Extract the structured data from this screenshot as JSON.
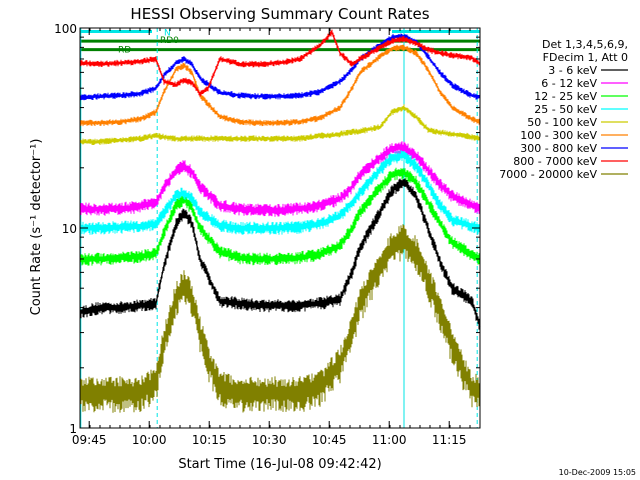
{
  "chart_data": {
    "type": "line",
    "title": "HESSI Observing Summary Count Rates",
    "xlabel": "Start Time (16-Jul-08 09:42:42)",
    "ylabel": "Count Rate (s⁻¹ detector⁻¹)",
    "x_unit": "minutes after 09:42:42",
    "xlim": [
      0,
      100
    ],
    "ylim": [
      1,
      100
    ],
    "y_scale": "log",
    "x_tick_labels": [
      "09:45",
      "10:00",
      "10:15",
      "10:30",
      "10:45",
      "11:00",
      "11:15"
    ],
    "x_tick_values": [
      2.3,
      17.3,
      32.3,
      47.3,
      62.3,
      77.3,
      92.3
    ],
    "y_tick_labels": [
      "1",
      "10",
      "100"
    ],
    "y_tick_values": [
      1,
      10,
      100
    ],
    "legend_header": [
      "Det 1,3,4,5,6,9,",
      "FDecim 1, Att 0"
    ],
    "legend_placement": "right",
    "annotations": [
      {
        "text": "N",
        "x": 21,
        "y": 96,
        "color": "#00e5e5"
      },
      {
        "text": "RD0",
        "x": 20,
        "y": 88,
        "color": "#008000"
      },
      {
        "text": "RD",
        "x": 9.5,
        "y": 79,
        "color": "#008000"
      }
    ],
    "flags": [
      {
        "name": "N",
        "color": "#00e5e5",
        "y": 96,
        "segments": [
          [
            0,
            18
          ],
          [
            78,
            100
          ]
        ]
      },
      {
        "name": "RD0",
        "color": "#008000",
        "y": 86,
        "segments": [
          [
            0,
            100
          ]
        ]
      },
      {
        "name": "RD",
        "color": "#008000",
        "y": 78,
        "segments": [
          [
            0,
            16
          ],
          [
            16,
            100
          ]
        ]
      }
    ],
    "vertical_lines": [
      {
        "x": 0.2,
        "color": "#00e5e5",
        "style": "solid"
      },
      {
        "x": 19.3,
        "color": "#00e5e5",
        "style": "dashed"
      },
      {
        "x": 81.0,
        "color": "#00e5e5",
        "style": "solid"
      },
      {
        "x": 99.3,
        "color": "#00e5e5",
        "style": "dashed"
      }
    ],
    "series": [
      {
        "name": "3 - 6 keV",
        "color": "#000000",
        "x": [
          0,
          5,
          10,
          15,
          19,
          21,
          24,
          26,
          28,
          30,
          35,
          40,
          45,
          50,
          55,
          60,
          65,
          68,
          70,
          75,
          78,
          81,
          84,
          87,
          90,
          93,
          96,
          98,
          100
        ],
        "y": [
          3.8,
          4.0,
          4.0,
          4.1,
          4.2,
          6.5,
          10.5,
          12.0,
          10.5,
          7.0,
          4.3,
          4.2,
          4.1,
          4.1,
          4.1,
          4.2,
          4.4,
          6.0,
          8.0,
          12.0,
          15.5,
          17.0,
          14.5,
          10.0,
          6.8,
          5.0,
          4.6,
          4.3,
          3.2
        ]
      },
      {
        "name": "6 - 12 keV",
        "color": "#ff00ff",
        "x": [
          0,
          5,
          10,
          15,
          19,
          21,
          24,
          26,
          28,
          30,
          35,
          40,
          45,
          50,
          55,
          60,
          65,
          68,
          70,
          75,
          78,
          81,
          84,
          87,
          90,
          93,
          96,
          98,
          100
        ],
        "y": [
          12.5,
          12.4,
          12.5,
          12.8,
          13.5,
          16.0,
          19.5,
          20.5,
          19.0,
          16.0,
          13.0,
          12.4,
          12.3,
          12.3,
          12.5,
          13.0,
          14.0,
          16.0,
          18.5,
          22.5,
          25.0,
          25.5,
          23.0,
          19.5,
          16.5,
          14.5,
          13.5,
          13.0,
          12.5
        ]
      },
      {
        "name": "12 - 25 keV",
        "color": "#00ff00",
        "x": [
          0,
          5,
          10,
          15,
          19,
          21,
          24,
          26,
          28,
          30,
          35,
          40,
          45,
          50,
          55,
          60,
          65,
          68,
          70,
          75,
          78,
          81,
          84,
          87,
          90,
          93,
          96,
          98,
          100
        ],
        "y": [
          7.0,
          7.0,
          7.1,
          7.2,
          7.5,
          9.5,
          13.0,
          14.0,
          12.5,
          10.0,
          7.6,
          7.1,
          7.0,
          7.0,
          7.1,
          7.4,
          8.2,
          10.0,
          12.0,
          16.0,
          18.5,
          19.0,
          17.0,
          13.5,
          10.5,
          8.5,
          7.8,
          7.3,
          7.0
        ]
      },
      {
        "name": "25 - 50 keV",
        "color": "#00ffff",
        "x": [
          0,
          5,
          10,
          15,
          19,
          21,
          24,
          26,
          28,
          30,
          35,
          40,
          45,
          50,
          55,
          60,
          65,
          68,
          70,
          75,
          78,
          81,
          84,
          87,
          90,
          93,
          96,
          98,
          100
        ],
        "y": [
          10.0,
          10.0,
          10.1,
          10.2,
          10.5,
          12.0,
          14.5,
          15.0,
          14.0,
          12.0,
          10.3,
          10.0,
          10.0,
          10.0,
          10.1,
          10.5,
          11.5,
          13.5,
          15.0,
          19.5,
          22.5,
          23.0,
          20.5,
          16.5,
          13.0,
          11.0,
          10.5,
          10.2,
          10.0
        ]
      },
      {
        "name": "50 - 100 keV",
        "color": "#cccc00",
        "x": [
          0,
          5,
          10,
          15,
          19,
          21,
          24,
          26,
          28,
          30,
          33,
          40,
          45,
          50,
          55,
          60,
          63,
          67,
          70,
          75,
          78,
          81,
          84,
          87,
          90,
          93,
          96,
          98,
          100
        ],
        "y": [
          27.0,
          27.0,
          27.5,
          28.0,
          29.0,
          28.5,
          28.0,
          28.0,
          28.0,
          28.0,
          28.0,
          28.0,
          28.0,
          28.0,
          28.0,
          29.0,
          29.0,
          30.0,
          30.5,
          32.0,
          38.0,
          40.0,
          36.0,
          31.0,
          30.0,
          29.5,
          29.0,
          28.5,
          28.0
        ]
      },
      {
        "name": "100 - 300 keV",
        "color": "#ff8000",
        "x": [
          0,
          5,
          10,
          15,
          19,
          21,
          24,
          26,
          28,
          30,
          35,
          40,
          45,
          50,
          55,
          60,
          65,
          68,
          70,
          75,
          78,
          81,
          84,
          87,
          90,
          93,
          96,
          98,
          100
        ],
        "y": [
          33.5,
          33.5,
          34.0,
          35.0,
          38.0,
          48.0,
          62.0,
          65.0,
          60.0,
          46.0,
          36.0,
          34.0,
          33.5,
          33.5,
          34.0,
          35.5,
          40.0,
          50.0,
          60.0,
          72.0,
          79.0,
          80.0,
          75.0,
          62.0,
          48.0,
          40.0,
          37.0,
          35.0,
          34.0
        ]
      },
      {
        "name": "300 - 800 keV",
        "color": "#0000ff",
        "x": [
          0,
          5,
          10,
          15,
          19,
          21,
          24,
          26,
          28,
          30,
          35,
          40,
          45,
          50,
          55,
          60,
          65,
          68,
          70,
          75,
          78,
          81,
          84,
          87,
          90,
          93,
          96,
          98,
          100
        ],
        "y": [
          45.0,
          45.5,
          46.0,
          47.0,
          50.0,
          58.0,
          67.0,
          70.0,
          66.0,
          56.0,
          47.5,
          46.0,
          45.5,
          45.5,
          46.0,
          48.0,
          54.0,
          62.0,
          70.0,
          82.0,
          90.0,
          91.0,
          85.0,
          72.0,
          60.0,
          52.0,
          48.0,
          46.0,
          45.0
        ]
      },
      {
        "name": "800 - 7000 keV",
        "color": "#ff0000",
        "x": [
          0,
          5,
          10,
          15,
          19,
          21,
          24,
          26,
          28,
          30,
          32,
          35,
          40,
          45,
          50,
          55,
          60,
          63,
          65,
          68,
          70,
          75,
          78,
          81,
          84,
          87,
          90,
          93,
          96,
          98,
          100
        ],
        "y": [
          67.0,
          66.0,
          67.0,
          68.0,
          70.0,
          54.0,
          52.0,
          55.0,
          53.0,
          47.0,
          50.0,
          70.0,
          66.0,
          66.0,
          67.0,
          70.0,
          82.0,
          95.0,
          75.0,
          66.0,
          70.0,
          80.0,
          86.0,
          88.0,
          84.0,
          78.0,
          75.0,
          73.0,
          72.0,
          71.0,
          66.0
        ]
      },
      {
        "name": "7000 - 20000 keV",
        "color": "#808000",
        "x": [
          0,
          5,
          10,
          15,
          19,
          21,
          24,
          26,
          28,
          30,
          32,
          35,
          40,
          45,
          50,
          55,
          60,
          65,
          68,
          70,
          75,
          78,
          81,
          84,
          87,
          90,
          93,
          96,
          98,
          100
        ],
        "y": [
          1.5,
          1.5,
          1.5,
          1.5,
          1.7,
          2.7,
          4.5,
          5.2,
          4.5,
          3.0,
          2.2,
          1.6,
          1.5,
          1.5,
          1.5,
          1.5,
          1.6,
          2.1,
          3.0,
          4.2,
          6.5,
          8.0,
          8.8,
          7.5,
          5.5,
          3.8,
          2.6,
          1.9,
          1.6,
          1.5
        ]
      }
    ]
  },
  "timestamp": "10-Dec-2009 15:05"
}
